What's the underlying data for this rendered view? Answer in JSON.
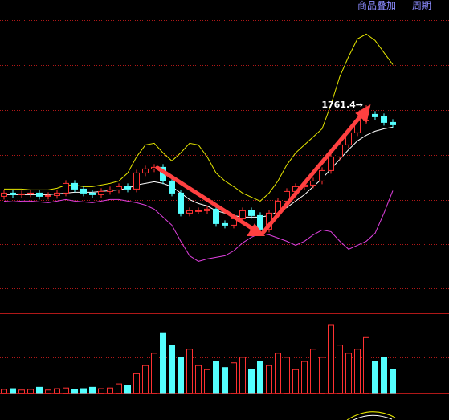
{
  "header": {
    "links": [
      "商品叠加",
      "周期"
    ]
  },
  "chart_data": [
    {
      "type": "candlestick",
      "annotation": "1761.4→",
      "annotation_index": 41,
      "ylim": [
        1502.4,
        1892.4
      ],
      "up_color": "#ff3232",
      "down_color": "#54ffff",
      "open": [
        1648,
        1652,
        1650,
        1651,
        1652,
        1648,
        1649,
        1652,
        1664,
        1657,
        1652,
        1650,
        1654,
        1656,
        1660,
        1657,
        1677,
        1682,
        1684,
        1667,
        1652,
        1627,
        1630,
        1630,
        1632,
        1614,
        1612,
        1620,
        1630,
        1624,
        1607,
        1627,
        1642,
        1654,
        1660,
        1662,
        1667,
        1680,
        1697,
        1712,
        1727,
        1742,
        1750,
        1747,
        1740
      ],
      "high": [
        1656,
        1656,
        1655,
        1656,
        1656,
        1653,
        1656,
        1668,
        1668,
        1661,
        1656,
        1658,
        1660,
        1664,
        1664,
        1681,
        1686,
        1688,
        1688,
        1671,
        1656,
        1634,
        1634,
        1636,
        1636,
        1618,
        1624,
        1634,
        1634,
        1628,
        1631,
        1646,
        1658,
        1664,
        1666,
        1671,
        1684,
        1701,
        1716,
        1731,
        1746,
        1761.4,
        1754,
        1751,
        1744
      ],
      "low": [
        1644,
        1646,
        1646,
        1647,
        1644,
        1644,
        1645,
        1648,
        1653,
        1648,
        1646,
        1646,
        1650,
        1652,
        1653,
        1653,
        1673,
        1678,
        1663,
        1648,
        1623,
        1623,
        1626,
        1626,
        1610,
        1608,
        1608,
        1616,
        1620,
        1600,
        1603,
        1623,
        1638,
        1650,
        1656,
        1658,
        1663,
        1676,
        1693,
        1708,
        1723,
        1738,
        1743,
        1736,
        1733
      ],
      "close": [
        1652,
        1650,
        1651,
        1652,
        1648,
        1649,
        1652,
        1664,
        1657,
        1652,
        1650,
        1654,
        1656,
        1660,
        1657,
        1677,
        1682,
        1684,
        1667,
        1652,
        1627,
        1630,
        1630,
        1632,
        1614,
        1612,
        1620,
        1630,
        1624,
        1607,
        1627,
        1642,
        1654,
        1660,
        1662,
        1667,
        1680,
        1697,
        1712,
        1727,
        1742,
        1750,
        1747,
        1740,
        1737
      ],
      "lines": [
        {
          "color": "#e6e600",
          "values": [
            1657,
            1657,
            1657,
            1656,
            1656,
            1656,
            1658,
            1662,
            1662,
            1660,
            1660,
            1662,
            1664,
            1667,
            1677,
            1697,
            1712,
            1714,
            1702,
            1692,
            1702,
            1714,
            1712,
            1697,
            1677,
            1667,
            1660,
            1652,
            1647,
            1642,
            1652,
            1667,
            1687,
            1702,
            1712,
            1722,
            1732,
            1762,
            1797,
            1822,
            1844,
            1850,
            1842,
            1827,
            1812
          ]
        },
        {
          "color": "#ffffff",
          "values": [
            1650,
            1650,
            1650,
            1650,
            1650,
            1650,
            1651,
            1652,
            1653,
            1653,
            1653,
            1654,
            1655,
            1656,
            1658,
            1662,
            1664,
            1666,
            1664,
            1660,
            1652,
            1644,
            1639,
            1636,
            1630,
            1627,
            1624,
            1622,
            1622,
            1622,
            1624,
            1629,
            1634,
            1642,
            1650,
            1660,
            1670,
            1682,
            1694,
            1706,
            1717,
            1724,
            1729,
            1732,
            1734
          ]
        },
        {
          "color": "#e040e0",
          "values": [
            1642,
            1641,
            1642,
            1642,
            1641,
            1640,
            1642,
            1644,
            1642,
            1641,
            1640,
            1642,
            1644,
            1644,
            1642,
            1640,
            1637,
            1632,
            1622,
            1612,
            1592,
            1574,
            1567,
            1570,
            1572,
            1574,
            1580,
            1590,
            1597,
            1602,
            1600,
            1596,
            1592,
            1587,
            1592,
            1600,
            1606,
            1604,
            1592,
            1582,
            1587,
            1592,
            1602,
            1627,
            1655
          ]
        }
      ]
    },
    {
      "type": "bar",
      "ylim": [
        0,
        100
      ],
      "values": [
        6,
        7,
        5,
        6,
        9,
        5,
        7,
        8,
        6,
        7,
        9,
        7,
        8,
        14,
        12,
        29,
        41,
        59,
        88,
        71,
        53,
        65,
        41,
        35,
        47,
        38,
        45,
        53,
        35,
        47,
        41,
        59,
        53,
        35,
        47,
        65,
        53,
        100,
        71,
        59,
        65,
        82,
        47,
        53,
        35
      ]
    }
  ]
}
